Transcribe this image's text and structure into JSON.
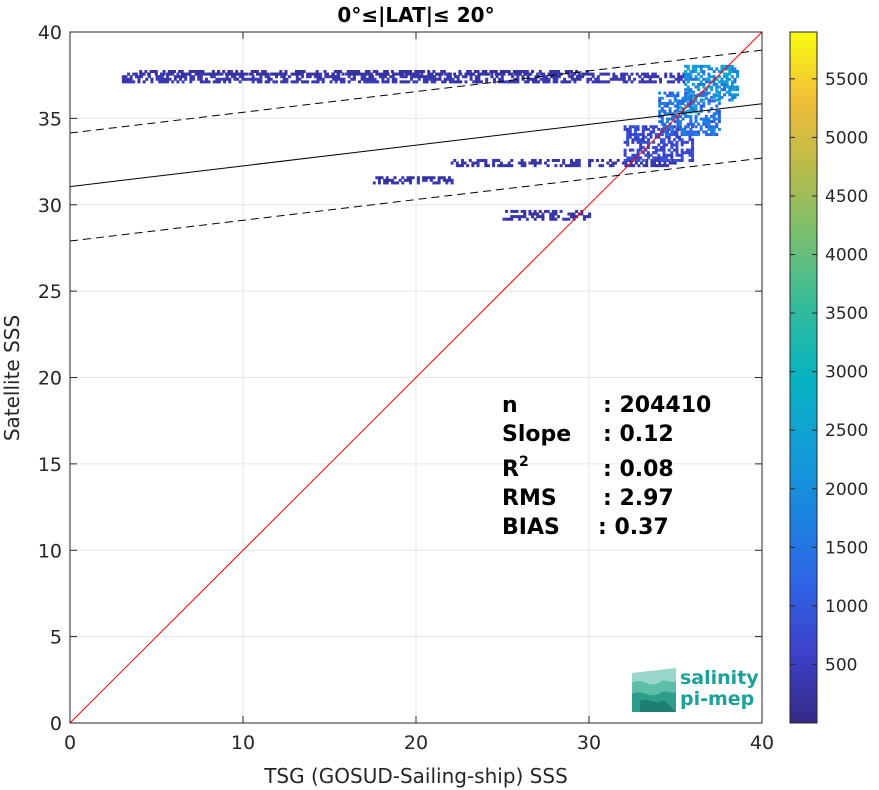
{
  "chart_data": {
    "type": "heatmap",
    "title": "0°≤|LAT|≤ 20°",
    "xlabel": "TSG (GOSUD-Sailing-ship) SSS",
    "ylabel": "Satellite SSS",
    "xlim": [
      0,
      40
    ],
    "ylim": [
      0,
      40
    ],
    "x_ticks": [
      "0",
      "10",
      "20",
      "30",
      "40"
    ],
    "y_ticks": [
      "0",
      "5",
      "10",
      "15",
      "20",
      "25",
      "30",
      "35",
      "40"
    ],
    "grid": true,
    "lines": [
      {
        "name": "1:1",
        "style": "solid",
        "color": "#ff0000",
        "intercept": 0,
        "slope": 1
      },
      {
        "name": "fit",
        "style": "solid",
        "color": "#000000",
        "intercept": 31.05,
        "slope": 0.12
      },
      {
        "name": "fit+",
        "style": "dashed",
        "color": "#000000",
        "intercept": 34.15,
        "slope": 0.12
      },
      {
        "name": "fit-",
        "style": "dashed",
        "color": "#000000",
        "intercept": 27.9,
        "slope": 0.12
      }
    ],
    "density_regions": [
      {
        "x0": 3.0,
        "x1": 35.5,
        "y0": 37.05,
        "y1": 37.5,
        "level": 0.06
      },
      {
        "x0": 4.0,
        "x1": 30.0,
        "y0": 37.5,
        "y1": 37.7,
        "level": 0.04
      },
      {
        "x0": 22.0,
        "x1": 35.0,
        "y0": 32.2,
        "y1": 32.6,
        "level": 0.05
      },
      {
        "x0": 17.5,
        "x1": 22.0,
        "y0": 31.2,
        "y1": 31.6,
        "level": 0.05
      },
      {
        "x0": 25.0,
        "x1": 30.0,
        "y0": 29.1,
        "y1": 29.6,
        "level": 0.05
      },
      {
        "x0": 32.0,
        "x1": 36.0,
        "y0": 32.5,
        "y1": 34.5,
        "level": 0.12
      },
      {
        "x0": 34.0,
        "x1": 37.5,
        "y0": 34.0,
        "y1": 36.5,
        "level": 0.25
      },
      {
        "x0": 35.5,
        "x1": 38.5,
        "y0": 36.0,
        "y1": 38.0,
        "level": 0.35
      },
      {
        "x0": 35.2,
        "x1": 36.2,
        "y0": 35.3,
        "y1": 35.7,
        "level": 0.55
      }
    ],
    "colorbar": {
      "min": 0,
      "max": 5900,
      "ticks": [
        "500",
        "1000",
        "1500",
        "2000",
        "2500",
        "3000",
        "3500",
        "4000",
        "4500",
        "5000",
        "5500"
      ],
      "colormap": "parula"
    },
    "stats": {
      "n_label": "n",
      "n_value": ": 204410",
      "slope_label": "Slope",
      "slope_value": ": 0.12",
      "r2_label": "R",
      "r2_sup": "2",
      "r2_value": ": 0.08",
      "rms_label": "RMS",
      "rms_value": ": 2.97",
      "bias_label": "BIAS",
      "bias_value": ": 0.37"
    }
  },
  "logo": {
    "line1": "salinity",
    "line2": "pi-mep",
    "color": "#1aa39a"
  }
}
